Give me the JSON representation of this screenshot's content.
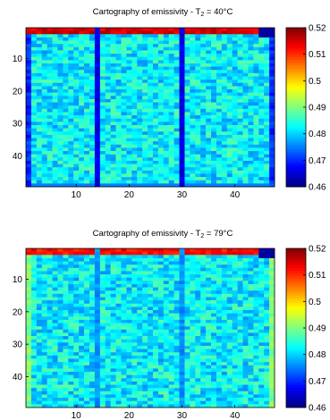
{
  "chart_data": [
    {
      "type": "heatmap",
      "title": "Cartography of emissivity - T",
      "title_sub": "2",
      "title_value": " = 40°C",
      "cols": 47,
      "rows": 49,
      "xlim": [
        0.5,
        47.5
      ],
      "ylim": [
        0.5,
        49.5
      ],
      "x_ticks": [
        10,
        20,
        30,
        40
      ],
      "y_ticks": [
        10,
        20,
        30,
        40
      ],
      "colormap": "jet",
      "clim": [
        0.46,
        0.52
      ],
      "colorbar_ticks": [
        "0.52",
        "0.51",
        "0.5",
        "0.49",
        "0.48",
        "0.47",
        "0.46"
      ],
      "colorbar_values": [
        0.52,
        0.51,
        0.5,
        0.49,
        0.48,
        0.47,
        0.46
      ],
      "field": {
        "base": 0.482,
        "top_rows": 2,
        "top_value": 0.515,
        "bottom_rows": 1,
        "bottom_value": 0.475,
        "stripe_cols": [
          14,
          30
        ],
        "stripe_value": 0.466,
        "edge_cols": [
          1,
          47
        ],
        "edge_value": 0.47,
        "top_right_corner_value": 0.462
      }
    },
    {
      "type": "heatmap",
      "title": "Cartography of emissivity - T",
      "title_sub": "2",
      "title_value": " = 79°C",
      "cols": 47,
      "rows": 49,
      "xlim": [
        0.5,
        47.5
      ],
      "ylim": [
        0.5,
        49.5
      ],
      "x_ticks": [
        10,
        20,
        30,
        40
      ],
      "y_ticks": [
        10,
        20,
        30,
        40
      ],
      "colormap": "jet",
      "clim": [
        0.46,
        0.52
      ],
      "colorbar_ticks": [
        "0.52",
        "0.51",
        "0.5",
        "0.49",
        "0.48",
        "0.47",
        "0.46"
      ],
      "colorbar_values": [
        0.52,
        0.51,
        0.5,
        0.49,
        0.48,
        0.47,
        0.46
      ],
      "field": {
        "base": 0.482,
        "top_rows": 2,
        "top_value": 0.512,
        "bottom_rows": 0,
        "bottom_value": 0.48,
        "stripe_cols": [
          14,
          30
        ],
        "stripe_value": 0.476,
        "edge_cols": [
          1,
          47
        ],
        "edge_value": 0.49,
        "top_right_corner_value": 0.462
      }
    }
  ]
}
